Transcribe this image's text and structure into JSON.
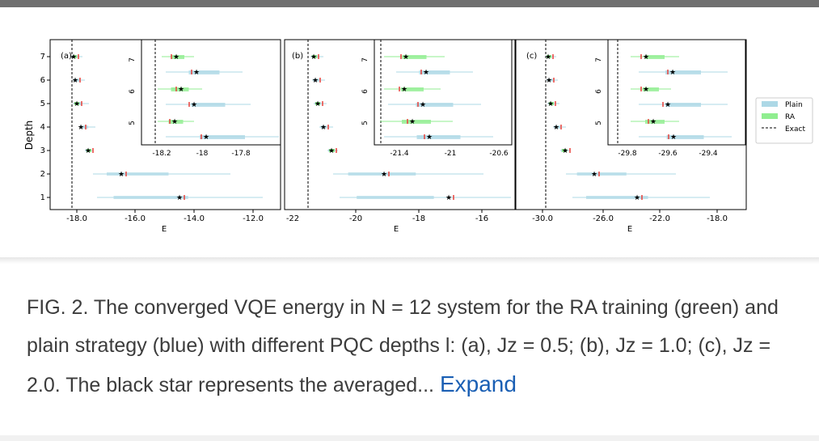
{
  "figure": {
    "ylabel": "Depth",
    "xlabel": "E",
    "y_ticks": [
      "1",
      "2",
      "3",
      "4",
      "5",
      "6",
      "7"
    ],
    "legend": [
      {
        "label": "Plain",
        "color": "#add8e6"
      },
      {
        "label": "RA",
        "color": "#90ee90"
      },
      {
        "label": "Exact",
        "style": "dashed"
      }
    ],
    "colors": {
      "plain": "#add8e6",
      "ra": "#90ee90",
      "median": "#e8413a",
      "mean_star": "#000000"
    },
    "panels": [
      {
        "tag": "(a)",
        "x_ticks": [
          "-18.0",
          "-16.0",
          "-14.0",
          "-12.0"
        ],
        "inset_x_ticks": [
          "-18.2",
          "-18",
          "-17.8"
        ],
        "inset_y_ticks": [
          "5",
          "6",
          "7"
        ]
      },
      {
        "tag": "(b)",
        "x_ticks": [
          "-22",
          "-20",
          "-18",
          "-16"
        ],
        "inset_x_ticks": [
          "-21.4",
          "-21",
          "-20.6"
        ],
        "inset_y_ticks": [
          "5",
          "6",
          "7"
        ]
      },
      {
        "tag": "(c)",
        "x_ticks": [
          "-30.0",
          "-26.0",
          "-22.0",
          "-18.0"
        ],
        "inset_x_ticks": [
          "-29.8",
          "-29.6",
          "-29.4"
        ],
        "inset_y_ticks": [
          "5",
          "6",
          "7"
        ]
      }
    ]
  },
  "caption": {
    "text": "FIG. 2. The converged VQE energy in N = 12 system for the RA training (green) and plain strategy (blue) with different PQC depths l: (a), Jz = 0.5; (b), Jz = 1.0; (c), Jz = 2.0. The black star represents the averaged...",
    "expand_label": "Expand"
  }
}
